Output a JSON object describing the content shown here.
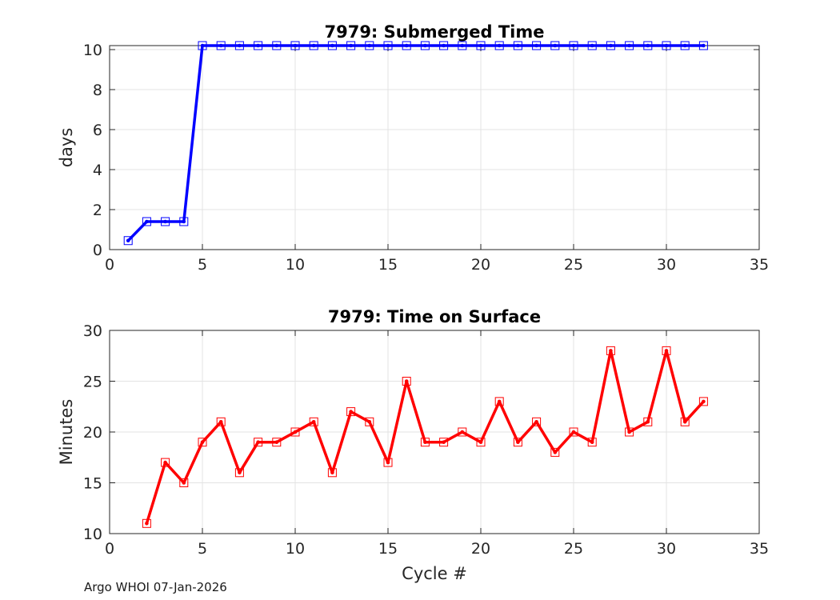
{
  "footer": {
    "text": "Argo WHOI 07-Jan-2026"
  },
  "chart_data": [
    {
      "type": "line",
      "title": "7979: Submerged Time",
      "xlabel": "",
      "ylabel": "days",
      "xlim": [
        0,
        35
      ],
      "ylim": [
        0,
        10.2
      ],
      "xticks": [
        0,
        5,
        10,
        15,
        20,
        25,
        30,
        35
      ],
      "yticks": [
        0,
        2,
        4,
        6,
        8,
        10
      ],
      "grid": true,
      "color": "#0000ff",
      "x": [
        1,
        2,
        3,
        4,
        5,
        6,
        7,
        8,
        9,
        10,
        11,
        12,
        13,
        14,
        15,
        16,
        17,
        18,
        19,
        20,
        21,
        22,
        23,
        24,
        25,
        26,
        27,
        28,
        29,
        30,
        31,
        32
      ],
      "values": [
        0.45,
        1.4,
        1.4,
        1.4,
        10.2,
        10.2,
        10.2,
        10.2,
        10.2,
        10.2,
        10.2,
        10.2,
        10.2,
        10.2,
        10.2,
        10.2,
        10.2,
        10.2,
        10.2,
        10.2,
        10.2,
        10.2,
        10.2,
        10.2,
        10.2,
        10.2,
        10.2,
        10.2,
        10.2,
        10.2,
        10.2,
        10.2
      ]
    },
    {
      "type": "line",
      "title": "7979: Time on Surface",
      "xlabel": "Cycle #",
      "ylabel": "Minutes",
      "xlim": [
        0,
        35
      ],
      "ylim": [
        10,
        30
      ],
      "xticks": [
        0,
        5,
        10,
        15,
        20,
        25,
        30,
        35
      ],
      "yticks": [
        10,
        15,
        20,
        25,
        30
      ],
      "grid": true,
      "color": "#ff0000",
      "x": [
        2,
        3,
        4,
        5,
        6,
        7,
        8,
        9,
        10,
        11,
        12,
        13,
        14,
        15,
        16,
        17,
        18,
        19,
        20,
        21,
        22,
        23,
        24,
        25,
        26,
        27,
        28,
        29,
        30,
        31,
        32
      ],
      "values": [
        11,
        17,
        15,
        19,
        21,
        16,
        19,
        19,
        20,
        21,
        16,
        22,
        21,
        17,
        25,
        19,
        19,
        20,
        19,
        23,
        19,
        21,
        18,
        20,
        19,
        28,
        20,
        21,
        28,
        21,
        23
      ]
    }
  ]
}
